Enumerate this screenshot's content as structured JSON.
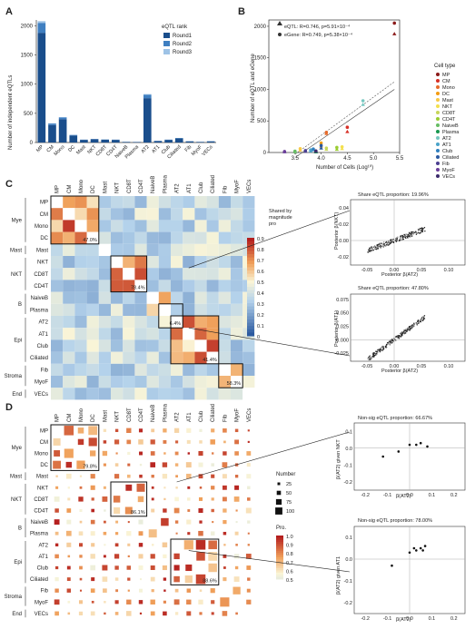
{
  "panels": {
    "a": "A",
    "b": "B",
    "c": "C",
    "d": "D"
  },
  "cell_types": [
    "MP",
    "CM",
    "Mono",
    "DC",
    "Mast",
    "NKT",
    "CD8T",
    "CD4T",
    "NaiveB",
    "Plasma",
    "AT2",
    "AT1",
    "Club",
    "Ciliated",
    "Fib",
    "MyoF",
    "VECs"
  ],
  "groups": [
    {
      "name": "Mye",
      "start": 0,
      "end": 3
    },
    {
      "name": "Mast",
      "start": 4,
      "end": 4
    },
    {
      "name": "NKT",
      "start": 5,
      "end": 7
    },
    {
      "name": "B",
      "start": 8,
      "end": 9
    },
    {
      "name": "Epi",
      "start": 10,
      "end": 13
    },
    {
      "name": "Stroma",
      "start": 14,
      "end": 15
    },
    {
      "name": "End",
      "start": 16,
      "end": 16
    }
  ],
  "chart_data": [
    {
      "type": "bar",
      "ylabel": "Number of independent eQTLs",
      "categories": [
        "MP",
        "CM",
        "Mono",
        "DC",
        "Mast",
        "NKT",
        "CD8T",
        "CD4T",
        "NaiveB",
        "Plasma",
        "AT2",
        "AT1",
        "Club",
        "Ciliated",
        "Fib",
        "MyoF",
        "VECs"
      ],
      "legend_title": "eQTL rank",
      "ylim": [
        0,
        2100
      ],
      "yticks": [
        0,
        500,
        1000,
        1500,
        2000
      ],
      "series": [
        {
          "name": "Round1",
          "color": "#1a4e8c",
          "values": [
            1880,
            300,
            400,
            120,
            45,
            55,
            48,
            45,
            10,
            8,
            760,
            25,
            45,
            70,
            20,
            10,
            20
          ]
        },
        {
          "name": "Round2",
          "color": "#3f7fc1",
          "values": [
            170,
            25,
            30,
            10,
            4,
            5,
            4,
            4,
            1,
            1,
            60,
            3,
            4,
            6,
            2,
            1,
            2
          ]
        },
        {
          "name": "Round3",
          "color": "#9ec3e6",
          "values": [
            30,
            5,
            5,
            2,
            1,
            1,
            1,
            1,
            0,
            0,
            10,
            0,
            1,
            1,
            0,
            0,
            0
          ]
        }
      ]
    },
    {
      "type": "scatter",
      "xlabel": "Number of Cells (Log¹⁰)",
      "ylabel": "Number of eQTL and eGene",
      "xlim": [
        3.0,
        5.5
      ],
      "ylim": [
        0,
        2100
      ],
      "xticks": [
        3.5,
        4.0,
        4.5,
        5.0,
        5.5
      ],
      "yticks": [
        0,
        500,
        1000,
        1500,
        2000
      ],
      "stat_eqtl": "eQTL: R=0.746, p=5.91×10⁻⁴",
      "stat_egene": "eGene: R=0.749, p=5.38×10⁻⁴",
      "legend_title": "Cell type",
      "legend_colors": [
        "#8b1a1a",
        "#d73027",
        "#e66b2b",
        "#f39c12",
        "#f7c948",
        "#f4e04d",
        "#c8d65b",
        "#9acd32",
        "#66bd63",
        "#1a9850",
        "#76c7c0",
        "#4aa3c9",
        "#2f7fbf",
        "#2c5aa0",
        "#4b3f91",
        "#6a3d9a",
        "#3b2a6b"
      ],
      "points": [
        {
          "x": 5.4,
          "eqtl": 1880,
          "egene": 2050
        },
        {
          "x": 4.5,
          "eqtl": 330,
          "egene": 400
        },
        {
          "x": 4.1,
          "eqtl": 300,
          "egene": 320
        },
        {
          "x": 4.0,
          "eqtl": 100,
          "egene": 150
        },
        {
          "x": 3.6,
          "eqtl": 40,
          "egene": 60
        },
        {
          "x": 4.4,
          "eqtl": 60,
          "egene": 90
        },
        {
          "x": 4.1,
          "eqtl": 50,
          "egene": 70
        },
        {
          "x": 4.3,
          "eqtl": 50,
          "egene": 80
        },
        {
          "x": 3.5,
          "eqtl": 10,
          "egene": 20
        },
        {
          "x": 3.9,
          "eqtl": 8,
          "egene": 15
        },
        {
          "x": 4.8,
          "eqtl": 760,
          "egene": 820
        },
        {
          "x": 3.8,
          "eqtl": 25,
          "egene": 40
        },
        {
          "x": 3.85,
          "eqtl": 45,
          "egene": 55
        },
        {
          "x": 4.0,
          "eqtl": 70,
          "egene": 110
        },
        {
          "x": 3.7,
          "eqtl": 20,
          "egene": 30
        },
        {
          "x": 3.3,
          "eqtl": 10,
          "egene": 15
        },
        {
          "x": 3.9,
          "eqtl": 20,
          "egene": 25
        }
      ]
    },
    {
      "type": "heatmap",
      "legend_title": "Shared by magnitude pro",
      "legend_ticks": [
        "0.9",
        "0.8",
        "0.7",
        "0.6",
        "0.5",
        "0.4",
        "0.3",
        "0.2",
        "0.1",
        "0"
      ],
      "box_labels": [
        "47.0%",
        "78.4%",
        "6.4%",
        "41.4%",
        "58.3%"
      ]
    },
    {
      "type": "scatter",
      "title": "Share eQTL proportion: 19.96%",
      "xlabel": "Posterior β(AT2)",
      "ylabel": "Posterior β(NKT)",
      "xticks": [
        "-0.05",
        "0.00",
        "0.05",
        "0.10"
      ],
      "yticks": [
        "0.04",
        "0.02",
        "0.00",
        "-0.02"
      ]
    },
    {
      "type": "scatter",
      "title": "Share eQTL proportion: 47.80%",
      "xlabel": "Posterior β(AT2)",
      "ylabel": "Posterior β(AT1)",
      "xticks": [
        "-0.05",
        "0.00",
        "0.05",
        "0.10"
      ],
      "yticks": [
        "0.075",
        "0.050",
        "0.025",
        "0.000",
        "-0.025"
      ]
    },
    {
      "type": "heatmap",
      "legend_size_title": "Number",
      "size_ticks": [
        "25",
        "50",
        "75",
        "100"
      ],
      "legend_color_title": "Pro.",
      "color_ticks": [
        "1.0",
        "0.9",
        "0.8",
        "0.7",
        "0.6",
        "0.5"
      ],
      "box_labels": [
        "79.8%",
        "86.1%",
        "88.6%"
      ]
    },
    {
      "type": "scatter",
      "title": "Non-sig eQTL proportion: 66.67%",
      "xlabel": "β(AT2)",
      "ylabel": "β(AT2) given NKT",
      "xticks": [
        "-0.2",
        "-0.1",
        "0.0",
        "0.1",
        "0.2"
      ],
      "yticks": [
        "0.1",
        "0.0",
        "-0.1",
        "-0.2"
      ],
      "points": [
        [
          -0.12,
          -0.05
        ],
        [
          -0.05,
          -0.02
        ],
        [
          0.0,
          0.02
        ],
        [
          0.05,
          0.03
        ],
        [
          0.08,
          0.01
        ],
        [
          0.03,
          0.02
        ]
      ]
    },
    {
      "type": "scatter",
      "title": "Non-sig eQTL proportion: 78.00%",
      "xlabel": "β(AT2)",
      "ylabel": "β(AT2) given AT1",
      "xticks": [
        "-0.2",
        "-0.1",
        "0.0",
        "0.1",
        "0.2"
      ],
      "yticks": [
        "0.1",
        "0.0",
        "-0.1",
        "-0.2"
      ],
      "points": [
        [
          -0.08,
          -0.03
        ],
        [
          0.02,
          0.05
        ],
        [
          0.03,
          0.04
        ],
        [
          0.05,
          0.05
        ],
        [
          0.06,
          0.04
        ],
        [
          0.07,
          0.06
        ],
        [
          0.0,
          0.03
        ]
      ]
    }
  ]
}
